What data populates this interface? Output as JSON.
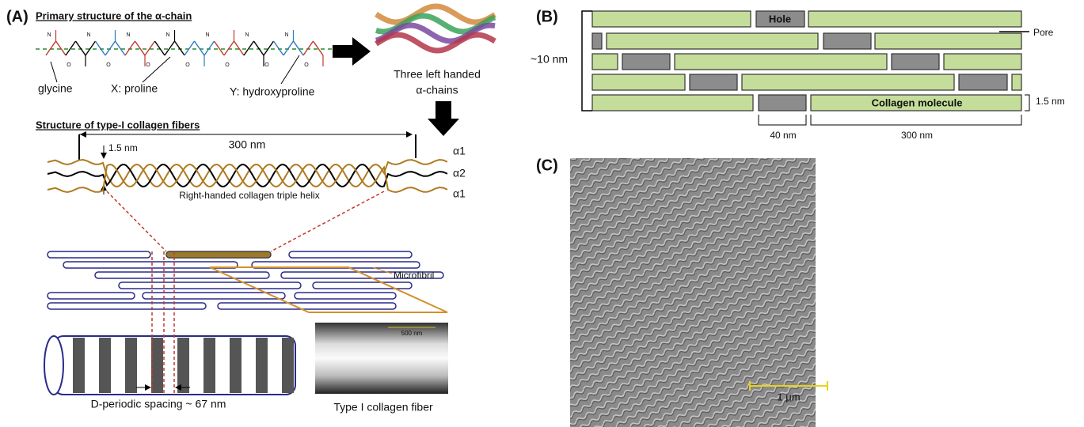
{
  "panel_a": {
    "label": "(A)",
    "primary_title": "Primary structure of the α-chain",
    "chain_atoms": [
      "N",
      "O",
      "N",
      "O",
      "N",
      "O",
      "N",
      "O",
      "N",
      "O",
      "N",
      "O",
      "N",
      "O"
    ],
    "glycine": "glycine",
    "proline": "X: proline",
    "hydroxyproline": "Y: hydroxyproline",
    "helix_caption": [
      "Three left handed",
      "α-chains"
    ],
    "fiber_title": "Structure of type-I collagen fibers",
    "length": "300 nm",
    "width": "1.5 nm",
    "chains": [
      "α1",
      "α2",
      "α1"
    ],
    "helix_label": "Right-handed collagen triple helix",
    "microfibril": "Microfibril",
    "tem_scale": "500 nm",
    "spacing": "D-periodic spacing ~ 67 nm",
    "fiber_label": "Type I collagen fiber"
  },
  "panel_b": {
    "label": "(B)",
    "hole": "Hole",
    "pore": "Pore",
    "height": "~10 nm",
    "width": "1.5 nm",
    "molecule": "Collagen molecule",
    "gap": "40 nm",
    "length": "300 nm"
  },
  "panel_c": {
    "label": "(C)",
    "scale": "1 μm"
  }
}
